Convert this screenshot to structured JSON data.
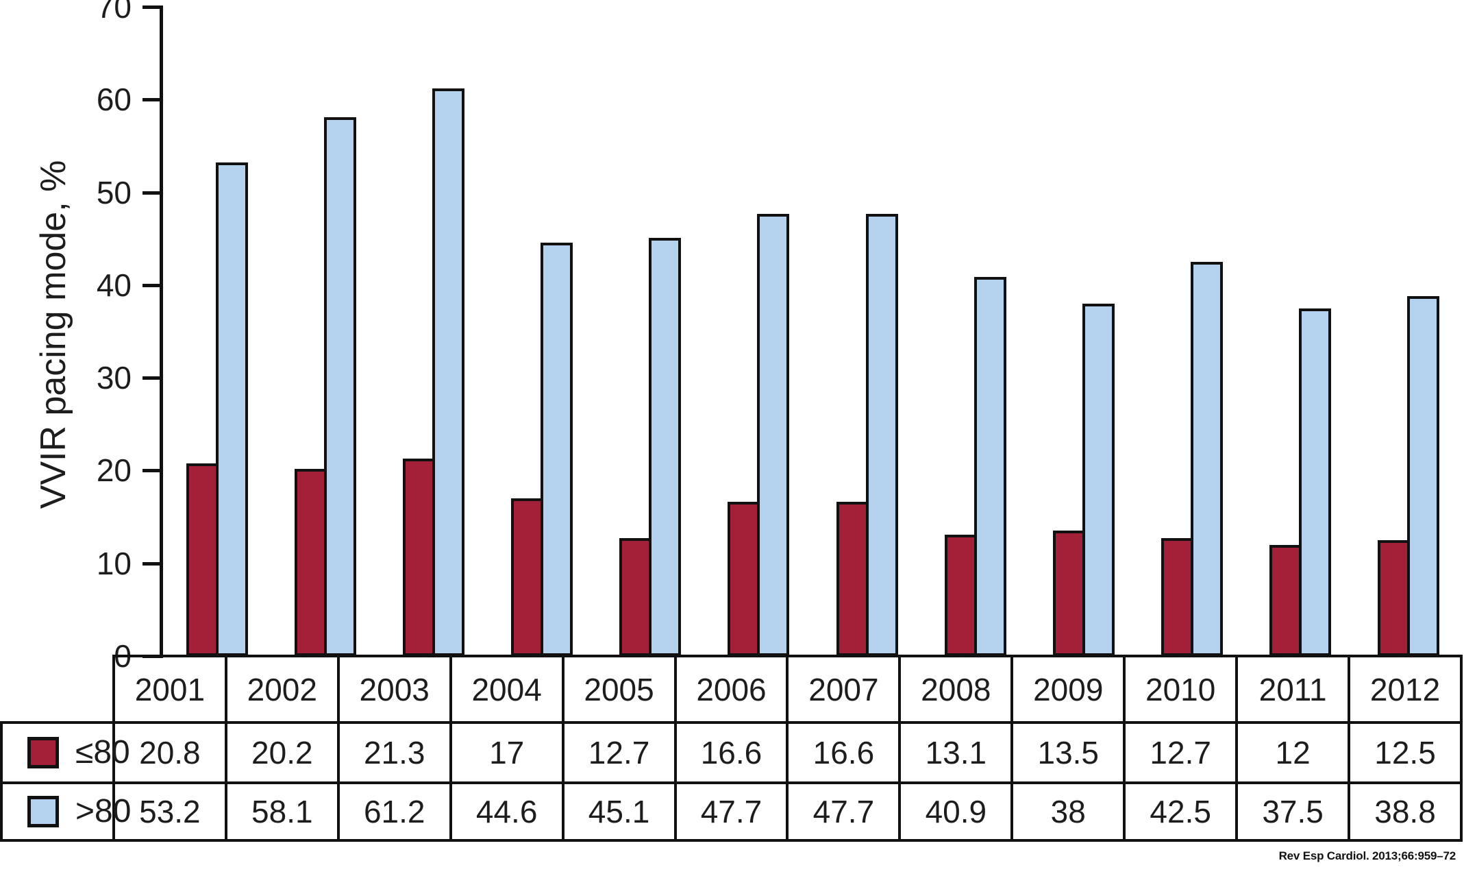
{
  "chart_data": {
    "type": "bar",
    "title": "",
    "xlabel": "",
    "ylabel": "VVIR pacing mode, %",
    "ylim": [
      0,
      70
    ],
    "yticks": [
      0,
      10,
      20,
      30,
      40,
      50,
      60,
      70
    ],
    "grid": false,
    "legend_position": "table-left",
    "categories": [
      "2001",
      "2002",
      "2003",
      "2004",
      "2005",
      "2006",
      "2007",
      "2008",
      "2009",
      "2010",
      "2011",
      "2012"
    ],
    "series": [
      {
        "key": "le80",
        "name": "≤80",
        "color": "#A32038",
        "values": [
          20.8,
          20.2,
          21.3,
          17,
          12.7,
          16.6,
          16.6,
          13.1,
          13.5,
          12.7,
          12,
          12.5
        ]
      },
      {
        "key": "gt80",
        "name": ">80",
        "color": "#B4D2EE",
        "values": [
          53.2,
          58.1,
          61.2,
          44.6,
          45.1,
          47.7,
          47.7,
          40.9,
          38,
          42.5,
          37.5,
          38.8
        ]
      }
    ]
  },
  "colors": {
    "bar_outline": "#111111",
    "axis": "#111111",
    "text": "#1d1d1d",
    "background": "#ffffff"
  },
  "source": {
    "citation": "Rev Esp Cardiol. 2013;66:959–72"
  }
}
